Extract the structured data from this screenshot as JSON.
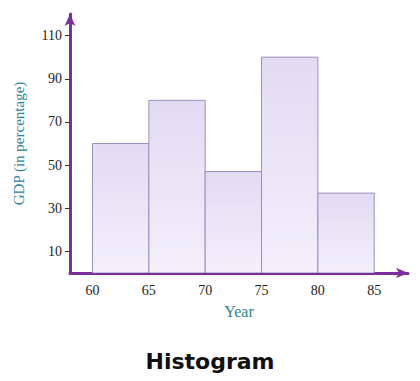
{
  "chart_data": {
    "type": "histogram",
    "title": "Histogram",
    "x_label": "Year",
    "y_label": "GDP (in percentage)",
    "bins": [
      60,
      65,
      70,
      75,
      80,
      85
    ],
    "values": [
      60,
      80,
      47,
      100,
      37
    ],
    "color": "#e2dbf3",
    "xlim": [
      58,
      88
    ],
    "xticks": [
      60,
      65,
      70,
      75,
      80,
      85
    ],
    "ylim": [
      0,
      120
    ],
    "yticks": [
      10,
      30,
      50,
      70,
      90,
      110
    ],
    "grid": false
  }
}
